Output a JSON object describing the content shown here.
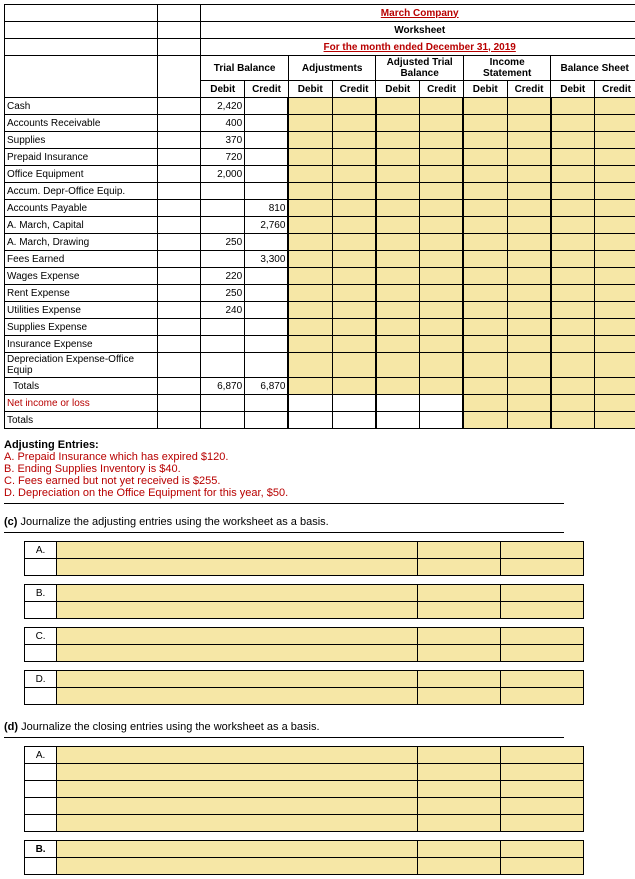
{
  "header": {
    "company": "March Company",
    "title": "Worksheet",
    "period": "For the month ended December 31, 2019",
    "groups": [
      "Trial Balance",
      "Adjustments",
      "Adjusted Trial Balance",
      "Income Statement",
      "Balance Sheet"
    ],
    "dc": [
      "Debit",
      "Credit"
    ]
  },
  "accounts": [
    {
      "name": "Cash",
      "debit": "2,420",
      "credit": ""
    },
    {
      "name": "Accounts Receivable",
      "debit": "400",
      "credit": ""
    },
    {
      "name": "Supplies",
      "debit": "370",
      "credit": ""
    },
    {
      "name": "Prepaid Insurance",
      "debit": "720",
      "credit": ""
    },
    {
      "name": "Office Equipment",
      "debit": "2,000",
      "credit": ""
    },
    {
      "name": "Accum. Depr-Office Equip.",
      "debit": "",
      "credit": ""
    },
    {
      "name": "Accounts Payable",
      "debit": "",
      "credit": "810"
    },
    {
      "name": "A. March, Capital",
      "debit": "",
      "credit": "2,760"
    },
    {
      "name": "A. March, Drawing",
      "debit": "250",
      "credit": ""
    },
    {
      "name": "Fees Earned",
      "debit": "",
      "credit": "3,300"
    },
    {
      "name": "Wages Expense",
      "debit": "220",
      "credit": ""
    },
    {
      "name": "Rent Expense",
      "debit": "250",
      "credit": ""
    },
    {
      "name": "Utilities Expense",
      "debit": "240",
      "credit": ""
    },
    {
      "name": "Supplies Expense",
      "debit": "",
      "credit": ""
    },
    {
      "name": "Insurance Expense",
      "debit": "",
      "credit": ""
    },
    {
      "name": "Depreciation Expense-Office Equip",
      "debit": "",
      "credit": ""
    }
  ],
  "totals": {
    "label": "Totals",
    "debit": "6,870",
    "credit": "6,870"
  },
  "footer_rows": [
    "Net income or loss",
    "Totals"
  ],
  "adj_entries": {
    "heading": "Adjusting Entries:",
    "items": [
      "A.  Prepaid Insurance which has expired $120.",
      "B.  Ending Supplies Inventory is $40.",
      "C.  Fees earned but not yet received is $255.",
      "D.  Depreciation on the Office Equipment for this year, $50."
    ]
  },
  "part_c": {
    "text": "(c) Journalize the adjusting entries using the worksheet as a basis.",
    "labels": [
      "A.",
      "B.",
      "C.",
      "D."
    ]
  },
  "part_d": {
    "text": "(d) Journalize the closing entries using the worksheet as a basis.",
    "labels": [
      "A.",
      "B."
    ]
  },
  "colors": {
    "fill": "#f6e7a6",
    "border": "#000000",
    "red": "#b80000",
    "bg": "#ffffff"
  }
}
